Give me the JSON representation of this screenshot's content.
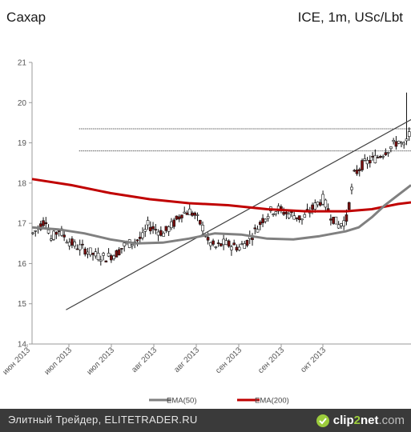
{
  "header": {
    "title": "Сахар",
    "source": "ICE, 1m, USc/Lbt"
  },
  "footer": {
    "text": "Элитный Трейдер, ELITETRADER.RU",
    "logo_name": "clip",
    "logo_two": "2",
    "logo_net": "net",
    "logo_domain": ".com"
  },
  "colors": {
    "ema50": "#808080",
    "ema200": "#c00000",
    "bear_candle": "#7a1010",
    "bull_candle": "#ffffff",
    "trend": "#404040"
  },
  "chart_data": {
    "type": "candlestick",
    "ylim": [
      14,
      21
    ],
    "y_ticks": [
      "14",
      "15",
      "16",
      "17",
      "18",
      "19",
      "20",
      "21"
    ],
    "x_labels": [
      "июн 2013",
      "июл 2013",
      "июл 2013",
      "авг 2013",
      "авг 2013",
      "сен 2013",
      "сен 2013",
      "окт 2013"
    ],
    "legend": {
      "position": "bottom",
      "items": [
        {
          "name": "EMA(50)",
          "color": "#808080"
        },
        {
          "name": "EMA(200)",
          "color": "#c00000"
        }
      ]
    },
    "n_bars": 290,
    "ema200": [
      [
        0,
        18.1
      ],
      [
        30,
        17.95
      ],
      [
        60,
        17.75
      ],
      [
        90,
        17.6
      ],
      [
        120,
        17.5
      ],
      [
        150,
        17.45
      ],
      [
        180,
        17.35
      ],
      [
        210,
        17.3
      ],
      [
        240,
        17.3
      ],
      [
        260,
        17.35
      ],
      [
        280,
        17.48
      ],
      [
        290,
        17.52
      ]
    ],
    "ema50": [
      [
        0,
        16.9
      ],
      [
        20,
        16.85
      ],
      [
        40,
        16.75
      ],
      [
        60,
        16.6
      ],
      [
        80,
        16.5
      ],
      [
        100,
        16.52
      ],
      [
        120,
        16.62
      ],
      [
        140,
        16.75
      ],
      [
        160,
        16.72
      ],
      [
        180,
        16.62
      ],
      [
        200,
        16.6
      ],
      [
        220,
        16.68
      ],
      [
        240,
        16.8
      ],
      [
        250,
        16.9
      ],
      [
        260,
        17.15
      ],
      [
        270,
        17.45
      ],
      [
        280,
        17.7
      ],
      [
        290,
        17.95
      ]
    ],
    "trendline": [
      [
        26,
        14.85
      ],
      [
        298,
        19.72
      ]
    ],
    "hlines": [
      {
        "y": 19.35,
        "x": [
          36,
          305
        ]
      },
      {
        "y": 18.8,
        "x": [
          36,
          305
        ]
      }
    ],
    "price_path": [
      [
        0,
        16.75
      ],
      [
        6,
        16.95
      ],
      [
        10,
        17.1
      ],
      [
        14,
        16.6
      ],
      [
        20,
        16.85
      ],
      [
        26,
        16.6
      ],
      [
        32,
        16.45
      ],
      [
        40,
        16.35
      ],
      [
        48,
        16.2
      ],
      [
        56,
        16.15
      ],
      [
        64,
        16.25
      ],
      [
        70,
        16.45
      ],
      [
        78,
        16.55
      ],
      [
        84,
        16.65
      ],
      [
        88,
        16.95
      ],
      [
        94,
        16.85
      ],
      [
        100,
        16.75
      ],
      [
        108,
        17.0
      ],
      [
        114,
        17.25
      ],
      [
        120,
        17.3
      ],
      [
        124,
        17.2
      ],
      [
        130,
        16.9
      ],
      [
        134,
        16.55
      ],
      [
        140,
        16.4
      ],
      [
        146,
        16.5
      ],
      [
        152,
        16.45
      ],
      [
        158,
        16.4
      ],
      [
        164,
        16.55
      ],
      [
        170,
        16.8
      ],
      [
        176,
        17.1
      ],
      [
        182,
        17.3
      ],
      [
        188,
        17.35
      ],
      [
        194,
        17.25
      ],
      [
        200,
        17.2
      ],
      [
        206,
        17.1
      ],
      [
        212,
        17.3
      ],
      [
        218,
        17.5
      ],
      [
        222,
        17.6
      ],
      [
        228,
        17.2
      ],
      [
        234,
        16.95
      ],
      [
        240,
        17.1
      ],
      [
        246,
        18.2
      ],
      [
        252,
        18.45
      ],
      [
        258,
        18.55
      ],
      [
        264,
        18.65
      ],
      [
        270,
        18.8
      ],
      [
        276,
        18.95
      ],
      [
        280,
        19.05
      ],
      [
        284,
        18.9
      ],
      [
        287,
        19.1
      ],
      [
        290,
        19.35
      ]
    ]
  }
}
